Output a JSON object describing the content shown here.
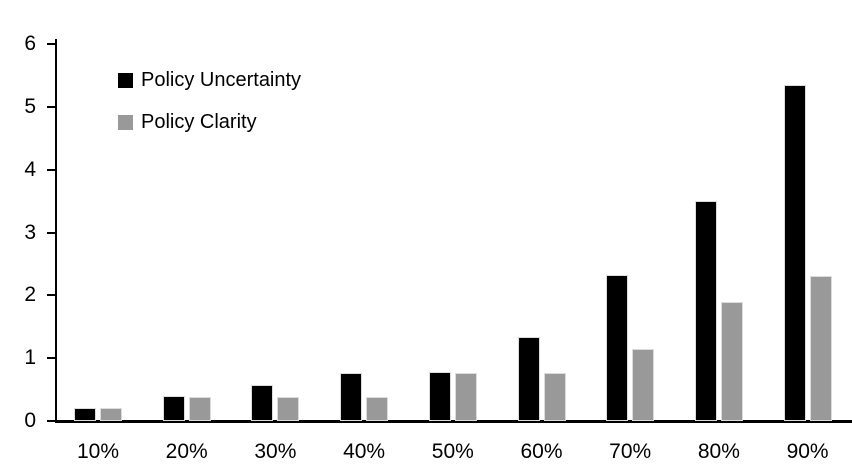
{
  "chart_data": {
    "type": "bar",
    "title": "",
    "xlabel": "",
    "ylabel": "",
    "categories": [
      "10%",
      "20%",
      "30%",
      "40%",
      "50%",
      "60%",
      "70%",
      "80%",
      "90%"
    ],
    "series": [
      {
        "name": "Policy Uncertainty",
        "color": "#000000",
        "values": [
          0.2,
          0.4,
          0.58,
          0.77,
          0.78,
          1.33,
          2.33,
          3.5,
          5.35
        ]
      },
      {
        "name": "Policy Clarity",
        "color": "#999999",
        "values": [
          0.2,
          0.38,
          0.38,
          0.38,
          0.77,
          0.77,
          1.15,
          1.9,
          2.3
        ]
      }
    ],
    "y_ticks": [
      0,
      1,
      2,
      3,
      4,
      5,
      6
    ],
    "ylim": [
      0,
      6
    ],
    "grid": false,
    "legend_position": "top-left-inside"
  },
  "colors": {
    "background": "#ffffff",
    "axis": "#000000",
    "text": "#000000",
    "bar_border": "#dcdcdc"
  }
}
